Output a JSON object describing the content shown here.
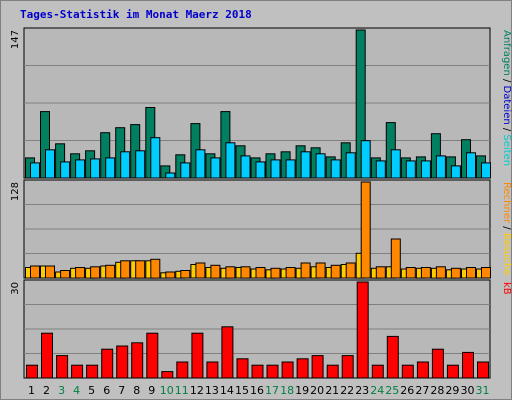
{
  "chart_data": {
    "title": "Tages-Statistik im Monat Maerz 2018",
    "days": [
      "1",
      "2",
      "3",
      "4",
      "5",
      "6",
      "7",
      "8",
      "9",
      "10",
      "11",
      "12",
      "13",
      "14",
      "15",
      "16",
      "17",
      "18",
      "19",
      "20",
      "21",
      "22",
      "23",
      "24",
      "25",
      "26",
      "27",
      "28",
      "29",
      "30",
      "31"
    ],
    "weekend_days": [
      3,
      4,
      10,
      11,
      17,
      18,
      24,
      25,
      31
    ],
    "colors": {
      "anfragen": "#008060",
      "dateien": "#00ccff",
      "seiten": "#008080",
      "besuche": "#ffcc00",
      "rechner": "#ff8800",
      "kb": "#ff0000",
      "weekday_label": "#000000",
      "weekend_label": "#008040"
    },
    "panels": [
      {
        "type": "bar",
        "ymax_label": "147",
        "ymax": 147,
        "right_labels": [
          {
            "text": "Anfragen",
            "color": "#008060"
          },
          {
            "text": " / ",
            "color": "#000000"
          },
          {
            "text": "Dateien",
            "color": "#0000cc"
          },
          {
            "text": " / ",
            "color": "#000000"
          },
          {
            "text": "Seiten",
            "color": "#00cccc"
          }
        ],
        "series": [
          {
            "key": "anfragen",
            "values": [
              20,
              66,
              34,
              24,
              27,
              45,
              50,
              53,
              70,
              12,
              23,
              54,
              24,
              66,
              32,
              20,
              24,
              26,
              32,
              30,
              21,
              35,
              147,
              20,
              55,
              20,
              21,
              44,
              21,
              38,
              22
            ]
          },
          {
            "key": "dateien",
            "values": [
              15,
              28,
              16,
              18,
              19,
              20,
              26,
              27,
              40,
              5,
              15,
              28,
              20,
              35,
              22,
              16,
              18,
              18,
              26,
              24,
              18,
              25,
              37,
              17,
              28,
              17,
              17,
              22,
              12,
              25,
              15
            ]
          },
          {
            "key": "seiten",
            "values": [
              0,
              0,
              0,
              0,
              0,
              0,
              0,
              0,
              0,
              0,
              0,
              0,
              0,
              0,
              0,
              0,
              0,
              0,
              0,
              0,
              0,
              0,
              0,
              0,
              0,
              0,
              0,
              0,
              0,
              0,
              0
            ]
          }
        ]
      },
      {
        "type": "bar",
        "ymax_label": "128",
        "ymax": 128,
        "right_labels": [
          {
            "text": "Rechner",
            "color": "#ff8800"
          },
          {
            "text": " / ",
            "color": "#000000"
          },
          {
            "text": "Besuche",
            "color": "#ffcc00"
          }
        ],
        "series": [
          {
            "key": "besuche",
            "values": [
              14,
              16,
              8,
              13,
              13,
              16,
              21,
              23,
              23,
              7,
              9,
              18,
              14,
              13,
              14,
              12,
              11,
              12,
              13,
              15,
              14,
              18,
              33,
              13,
              15,
              12,
              13,
              13,
              11,
              12,
              12
            ]
          },
          {
            "key": "rechner",
            "values": [
              16,
              16,
              10,
              14,
              15,
              17,
              23,
              23,
              25,
              8,
              10,
              20,
              17,
              15,
              15,
              14,
              13,
              14,
              20,
              20,
              17,
              20,
              128,
              15,
              52,
              14,
              14,
              15,
              13,
              14,
              14
            ]
          }
        ]
      },
      {
        "type": "bar",
        "ymax_label": "30",
        "ymax": 30,
        "right_labels": [
          {
            "text": "kB",
            "color": "#ff0000"
          }
        ],
        "series": [
          {
            "key": "kb",
            "values": [
              4,
              14,
              7,
              4,
              4,
              9,
              10,
              11,
              14,
              2,
              5,
              14,
              5,
              16,
              6,
              4,
              4,
              5,
              6,
              7,
              4,
              7,
              30,
              4,
              13,
              4,
              5,
              9,
              4,
              8,
              5
            ]
          }
        ]
      }
    ]
  }
}
